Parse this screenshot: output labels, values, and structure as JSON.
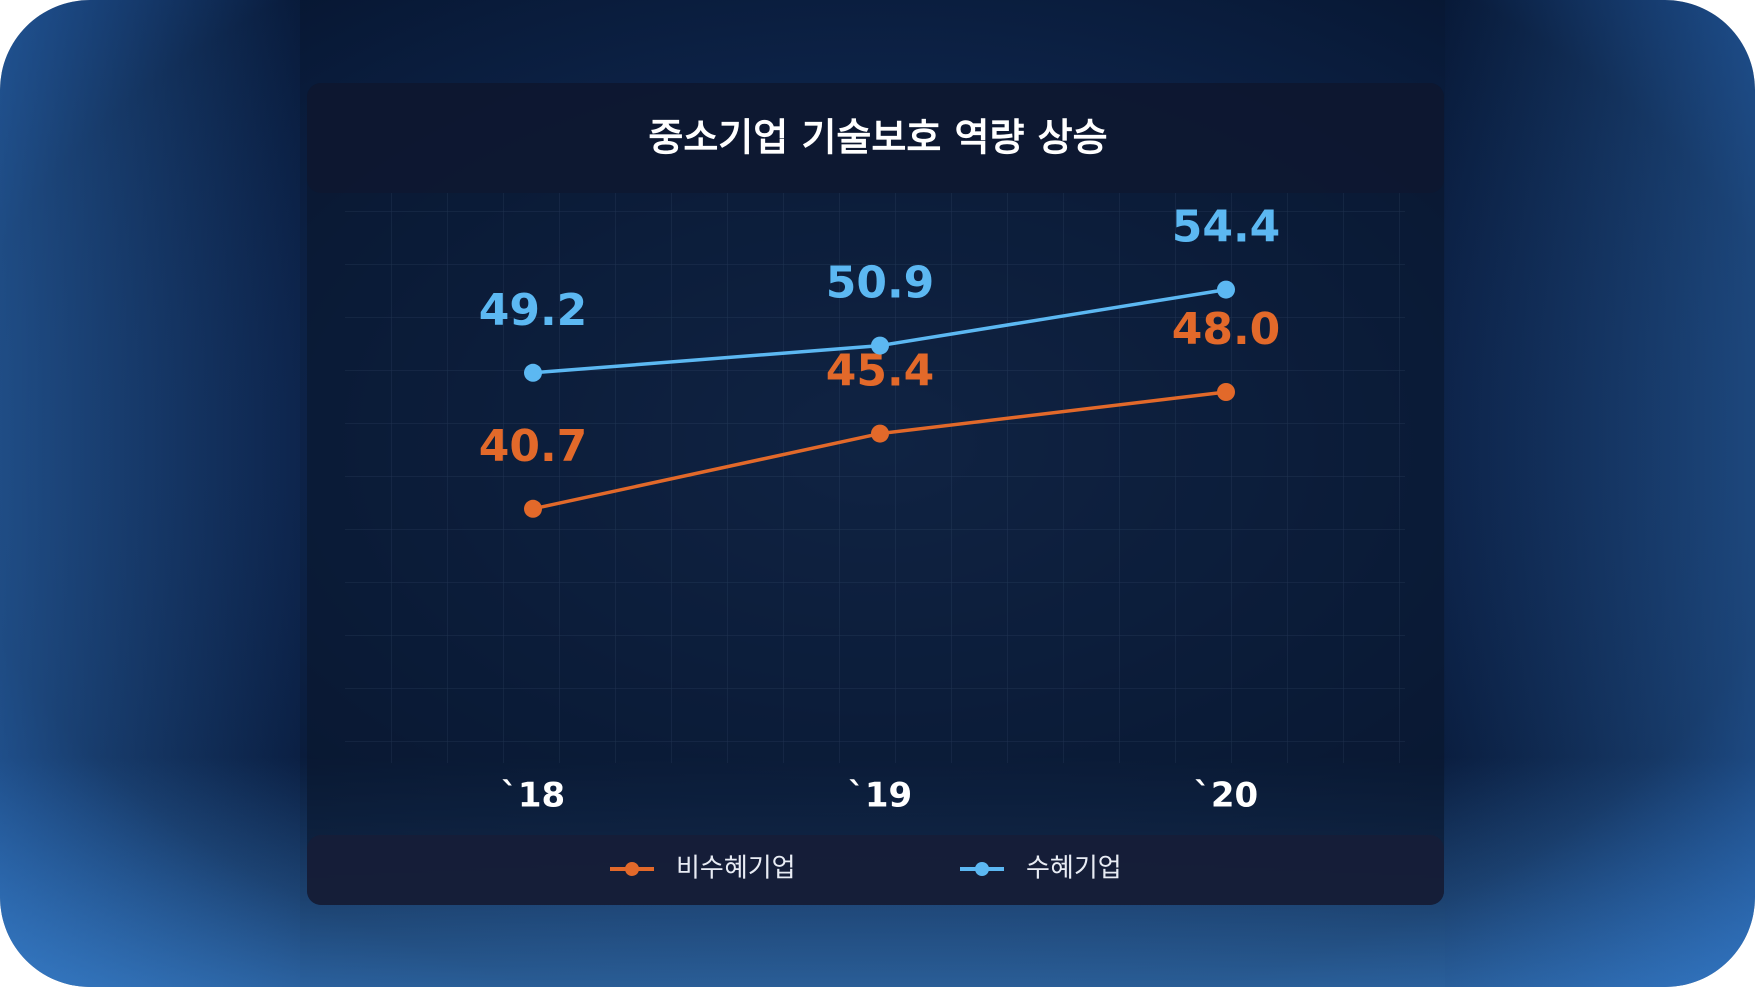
{
  "chart_data": {
    "type": "line",
    "title": "중소기업 기술보호 역량 상승",
    "categories": [
      "`18",
      "`19",
      "`20"
    ],
    "series": [
      {
        "name": "비수혜기업",
        "color": "#e2692a",
        "values": [
          40.7,
          45.4,
          48.0
        ],
        "value_labels": [
          "40.7",
          "45.4",
          "48.0"
        ]
      },
      {
        "name": "수혜기업",
        "color": "#5cb8f2",
        "values": [
          49.2,
          50.9,
          54.4
        ]
      }
    ],
    "ylim": [
      25,
      60
    ],
    "legend": "bottom"
  }
}
